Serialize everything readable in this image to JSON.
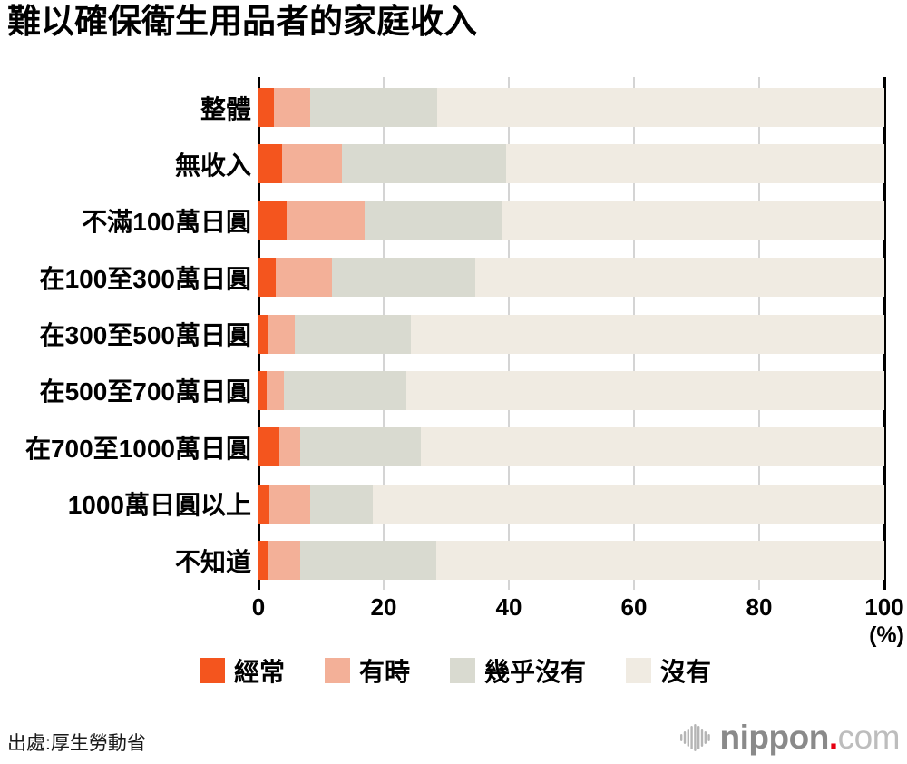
{
  "page": {
    "title": "難以確保衛生用品者的家庭收入",
    "source": "出處:厚生勞動省"
  },
  "axis": {
    "unit_label": "(%)"
  },
  "logo": {
    "brand": "nippon",
    "dot": ".",
    "tld": "com",
    "mark_icon": "sound-bars-icon",
    "brand_color": "#8a8a8a",
    "dot_color": "#e60012",
    "tld_color": "#bdbdbd"
  },
  "chart_data": {
    "type": "bar",
    "orientation": "horizontal",
    "stacked": true,
    "title": "難以確保衛生用品者的家庭收入",
    "xlabel": "(%)",
    "ylabel": "",
    "xlim": [
      0,
      100
    ],
    "x_ticks": [
      0,
      20,
      40,
      60,
      80,
      100
    ],
    "grid": true,
    "legend_position": "bottom",
    "axis_color": "#000000",
    "grid_color": "#d4d4d4",
    "categories": [
      "整體",
      "無收入",
      "不滿100萬日圓",
      "在100至300萬日圓",
      "在300至500萬日圓",
      "在500至700萬日圓",
      "在700至1000萬日圓",
      "1000萬日圓以上",
      "不知道"
    ],
    "series": [
      {
        "name": "經常",
        "color": "#f4551e",
        "values": [
          2.4,
          3.8,
          4.5,
          2.8,
          1.4,
          1.3,
          3.3,
          1.7,
          1.4
        ]
      },
      {
        "name": "有時",
        "color": "#f3b098",
        "values": [
          5.8,
          9.5,
          12.5,
          8.9,
          4.4,
          2.7,
          3.3,
          6.6,
          5.2
        ]
      },
      {
        "name": "幾乎沒有",
        "color": "#d9dad0",
        "values": [
          20.4,
          26.2,
          21.9,
          22.9,
          18.5,
          19.6,
          19.3,
          9.9,
          21.8
        ]
      },
      {
        "name": "沒有",
        "color": "#f0ebe2",
        "values": [
          71.4,
          60.5,
          61.1,
          65.4,
          75.7,
          76.4,
          74.1,
          81.8,
          71.6
        ]
      }
    ]
  }
}
